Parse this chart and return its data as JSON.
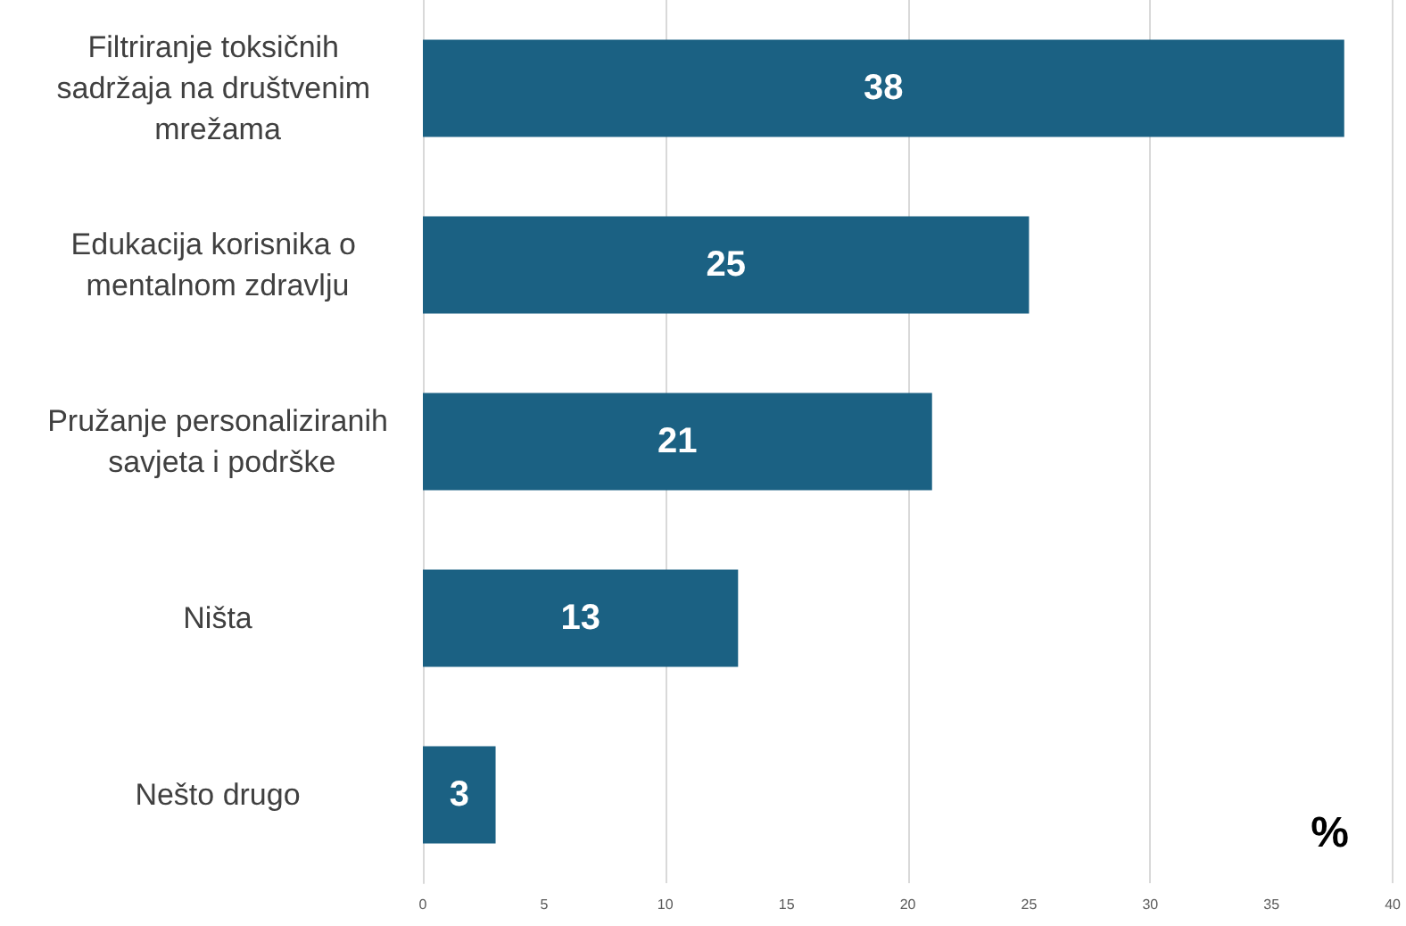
{
  "chart_data": {
    "type": "bar",
    "orientation": "horizontal",
    "categories": [
      "Filtriranje toksičnih sadržaja na društvenim mrežama",
      "Edukacija korisnika o mentalnom zdravlju",
      "Pružanje personaliziranih savjeta i podrške",
      "Ništa",
      "Nešto drugo"
    ],
    "values": [
      38,
      25,
      21,
      13,
      3
    ],
    "color": "#1b6183",
    "xlim": [
      0,
      40
    ],
    "xticks": [
      0,
      5,
      10,
      15,
      20,
      25,
      30,
      35,
      40
    ],
    "grid": "x",
    "data_labels": true,
    "annotations": [
      "%"
    ]
  }
}
